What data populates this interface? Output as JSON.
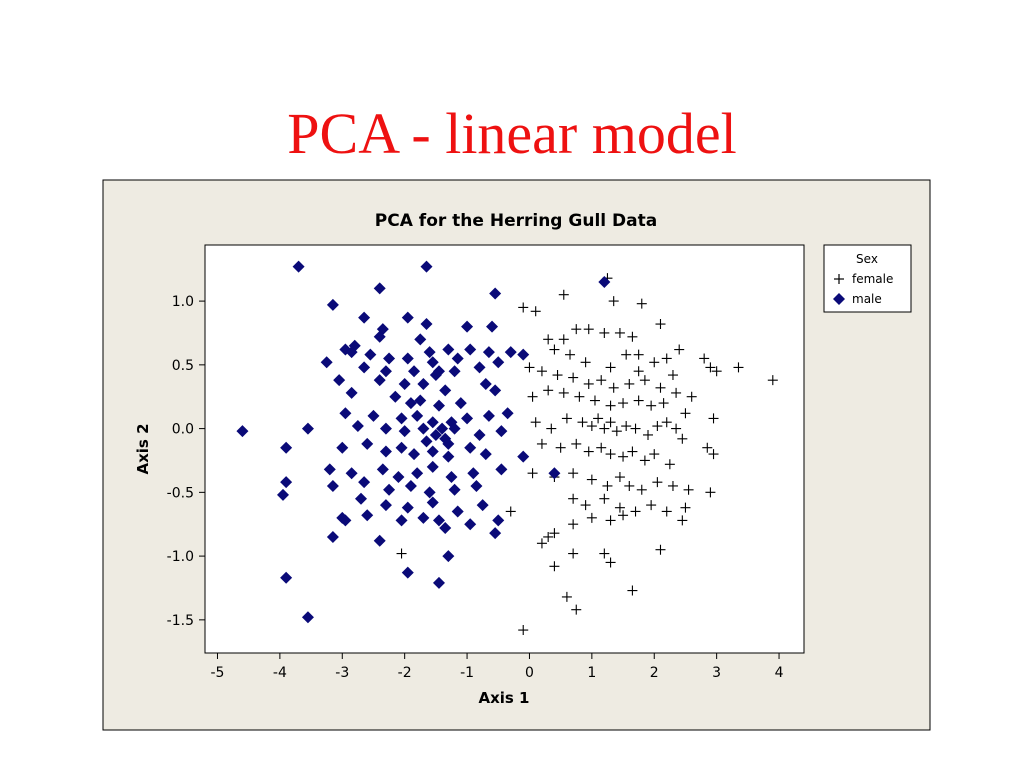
{
  "slide": {
    "title": "PCA - linear model"
  },
  "colors": {
    "title": "#ee1111",
    "male": "#0a0a78",
    "female": "#000000",
    "frame_bg": "#eeebe2"
  },
  "chart_data": {
    "type": "scatter",
    "title": "PCA for the Herring Gull Data",
    "xlabel": "Axis 1",
    "ylabel": "Axis 2",
    "xlim": [
      -5.2,
      4.4
    ],
    "ylim": [
      -1.76,
      1.44
    ],
    "xticks": [
      -5,
      -4,
      -3,
      -2,
      -1,
      0,
      1,
      2,
      3,
      4
    ],
    "xtick_labels": [
      "-5",
      "-4",
      "-3",
      "-2",
      "-1",
      "0",
      "1",
      "2",
      "3",
      "4"
    ],
    "yticks": [
      1.0,
      0.5,
      0.0,
      -0.5,
      -1.0,
      -1.5
    ],
    "ytick_labels": [
      "1.0",
      "0.5",
      "0.0",
      "-0.5",
      "-1.0",
      "-1.5"
    ],
    "grid": false,
    "legend": {
      "title": "Sex",
      "position": "right"
    },
    "series": [
      {
        "name": "female",
        "marker": "plus",
        "color": "#000000",
        "points": [
          [
            -0.1,
            0.95
          ],
          [
            0.3,
            0.7
          ],
          [
            0.55,
            0.7
          ],
          [
            0.75,
            0.78
          ],
          [
            0.95,
            0.78
          ],
          [
            1.2,
            0.75
          ],
          [
            1.45,
            0.75
          ],
          [
            1.65,
            0.72
          ],
          [
            0.4,
            0.62
          ],
          [
            0.65,
            0.58
          ],
          [
            0.9,
            0.52
          ],
          [
            1.3,
            0.48
          ],
          [
            1.55,
            0.58
          ],
          [
            1.75,
            0.58
          ],
          [
            2.0,
            0.52
          ],
          [
            2.2,
            0.55
          ],
          [
            2.4,
            0.62
          ],
          [
            0.0,
            0.48
          ],
          [
            0.2,
            0.45
          ],
          [
            0.45,
            0.42
          ],
          [
            0.7,
            0.4
          ],
          [
            0.95,
            0.35
          ],
          [
            1.15,
            0.38
          ],
          [
            1.35,
            0.32
          ],
          [
            1.6,
            0.35
          ],
          [
            1.85,
            0.38
          ],
          [
            2.1,
            0.32
          ],
          [
            2.35,
            0.28
          ],
          [
            2.6,
            0.25
          ],
          [
            2.8,
            0.55
          ],
          [
            2.9,
            0.48
          ],
          [
            3.0,
            0.45
          ],
          [
            3.35,
            0.48
          ],
          [
            3.9,
            0.38
          ],
          [
            0.55,
            0.28
          ],
          [
            0.8,
            0.25
          ],
          [
            1.05,
            0.22
          ],
          [
            1.3,
            0.18
          ],
          [
            1.5,
            0.2
          ],
          [
            1.75,
            0.22
          ],
          [
            1.95,
            0.18
          ],
          [
            2.15,
            0.2
          ],
          [
            2.5,
            0.12
          ],
          [
            2.95,
            0.08
          ],
          [
            0.1,
            0.05
          ],
          [
            0.35,
            0.0
          ],
          [
            0.6,
            0.08
          ],
          [
            0.85,
            0.05
          ],
          [
            1.0,
            0.02
          ],
          [
            1.1,
            0.08
          ],
          [
            1.2,
            0.0
          ],
          [
            1.3,
            0.05
          ],
          [
            1.4,
            -0.02
          ],
          [
            1.55,
            0.02
          ],
          [
            1.7,
            0.0
          ],
          [
            1.9,
            -0.05
          ],
          [
            2.05,
            0.02
          ],
          [
            2.2,
            0.05
          ],
          [
            2.35,
            0.0
          ],
          [
            2.45,
            -0.08
          ],
          [
            0.2,
            -0.12
          ],
          [
            0.5,
            -0.15
          ],
          [
            0.75,
            -0.12
          ],
          [
            0.95,
            -0.18
          ],
          [
            1.15,
            -0.15
          ],
          [
            1.3,
            -0.2
          ],
          [
            1.5,
            -0.22
          ],
          [
            1.65,
            -0.18
          ],
          [
            1.85,
            -0.25
          ],
          [
            2.0,
            -0.2
          ],
          [
            2.25,
            -0.28
          ],
          [
            2.85,
            -0.15
          ],
          [
            2.95,
            -0.2
          ],
          [
            0.05,
            -0.35
          ],
          [
            0.4,
            -0.38
          ],
          [
            0.7,
            -0.35
          ],
          [
            1.0,
            -0.4
          ],
          [
            1.25,
            -0.45
          ],
          [
            1.45,
            -0.38
          ],
          [
            1.6,
            -0.45
          ],
          [
            1.8,
            -0.48
          ],
          [
            2.05,
            -0.42
          ],
          [
            2.3,
            -0.45
          ],
          [
            2.55,
            -0.48
          ],
          [
            2.9,
            -0.5
          ],
          [
            0.7,
            -0.55
          ],
          [
            0.9,
            -0.6
          ],
          [
            1.2,
            -0.55
          ],
          [
            1.45,
            -0.62
          ],
          [
            1.7,
            -0.65
          ],
          [
            1.95,
            -0.6
          ],
          [
            2.2,
            -0.65
          ],
          [
            2.5,
            -0.62
          ],
          [
            2.45,
            -0.72
          ],
          [
            -1.15,
            -0.65
          ],
          [
            -0.3,
            -0.65
          ],
          [
            0.3,
            -0.85
          ],
          [
            0.4,
            -0.82
          ],
          [
            0.7,
            -0.75
          ],
          [
            1.0,
            -0.7
          ],
          [
            1.3,
            -0.72
          ],
          [
            1.5,
            -0.68
          ],
          [
            0.2,
            -0.9
          ],
          [
            0.7,
            -0.98
          ],
          [
            1.2,
            -0.98
          ],
          [
            1.3,
            -1.05
          ],
          [
            2.1,
            -0.95
          ],
          [
            0.4,
            -1.08
          ],
          [
            0.6,
            -1.32
          ],
          [
            0.75,
            -1.42
          ],
          [
            1.65,
            -1.27
          ],
          [
            -0.1,
            -1.58
          ],
          [
            -2.05,
            -0.98
          ],
          [
            1.25,
            1.18
          ],
          [
            1.35,
            1.0
          ],
          [
            1.8,
            0.98
          ],
          [
            2.1,
            0.82
          ],
          [
            0.55,
            1.05
          ],
          [
            0.1,
            0.92
          ],
          [
            2.3,
            0.42
          ],
          [
            1.75,
            0.45
          ],
          [
            0.3,
            0.3
          ],
          [
            0.05,
            0.25
          ]
        ]
      },
      {
        "name": "male",
        "marker": "diamond",
        "color": "#0a0a78",
        "points": [
          [
            -3.7,
            1.27
          ],
          [
            -1.65,
            1.27
          ],
          [
            -2.4,
            1.1
          ],
          [
            -0.55,
            1.06
          ],
          [
            1.2,
            1.15
          ],
          [
            -3.15,
            0.97
          ],
          [
            -2.65,
            0.87
          ],
          [
            -1.95,
            0.87
          ],
          [
            -2.35,
            0.78
          ],
          [
            -1.65,
            0.82
          ],
          [
            -1.0,
            0.8
          ],
          [
            -0.6,
            0.8
          ],
          [
            -2.4,
            0.72
          ],
          [
            -1.75,
            0.7
          ],
          [
            -1.3,
            0.62
          ],
          [
            -0.95,
            0.62
          ],
          [
            -2.95,
            0.62
          ],
          [
            -2.85,
            0.6
          ],
          [
            -2.55,
            0.58
          ],
          [
            -2.25,
            0.55
          ],
          [
            -1.95,
            0.55
          ],
          [
            -1.55,
            0.52
          ],
          [
            -1.15,
            0.55
          ],
          [
            -0.65,
            0.6
          ],
          [
            -0.3,
            0.6
          ],
          [
            -3.25,
            0.52
          ],
          [
            -2.65,
            0.48
          ],
          [
            -2.3,
            0.45
          ],
          [
            -1.85,
            0.45
          ],
          [
            -1.5,
            0.42
          ],
          [
            -1.2,
            0.45
          ],
          [
            -0.8,
            0.48
          ],
          [
            -0.5,
            0.52
          ],
          [
            -3.05,
            0.38
          ],
          [
            -2.4,
            0.38
          ],
          [
            -2.0,
            0.35
          ],
          [
            -1.7,
            0.35
          ],
          [
            -1.35,
            0.3
          ],
          [
            -0.7,
            0.35
          ],
          [
            -2.85,
            0.28
          ],
          [
            -2.15,
            0.25
          ],
          [
            -1.75,
            0.22
          ],
          [
            -1.45,
            0.18
          ],
          [
            -1.1,
            0.2
          ],
          [
            -0.55,
            0.3
          ],
          [
            -2.95,
            0.12
          ],
          [
            -2.5,
            0.1
          ],
          [
            -2.05,
            0.08
          ],
          [
            -1.8,
            0.1
          ],
          [
            -1.55,
            0.05
          ],
          [
            -1.4,
            0.0
          ],
          [
            -1.25,
            0.05
          ],
          [
            -1.0,
            0.08
          ],
          [
            -0.65,
            0.1
          ],
          [
            -0.35,
            0.12
          ],
          [
            -3.55,
            0.0
          ],
          [
            -2.75,
            0.02
          ],
          [
            -2.3,
            0.0
          ],
          [
            -2.0,
            -0.02
          ],
          [
            -1.7,
            0.0
          ],
          [
            -1.5,
            -0.05
          ],
          [
            -1.35,
            -0.08
          ],
          [
            -1.2,
            0.0
          ],
          [
            -0.8,
            -0.05
          ],
          [
            -0.45,
            -0.02
          ],
          [
            -4.6,
            -0.02
          ],
          [
            -3.9,
            -0.15
          ],
          [
            -3.0,
            -0.15
          ],
          [
            -2.6,
            -0.12
          ],
          [
            -2.3,
            -0.18
          ],
          [
            -2.05,
            -0.15
          ],
          [
            -1.85,
            -0.2
          ],
          [
            -1.55,
            -0.18
          ],
          [
            -1.3,
            -0.22
          ],
          [
            -0.95,
            -0.15
          ],
          [
            -0.7,
            -0.2
          ],
          [
            -0.1,
            -0.22
          ],
          [
            -3.2,
            -0.32
          ],
          [
            -2.85,
            -0.35
          ],
          [
            -2.35,
            -0.32
          ],
          [
            -2.1,
            -0.38
          ],
          [
            -1.8,
            -0.35
          ],
          [
            -1.55,
            -0.3
          ],
          [
            -1.25,
            -0.38
          ],
          [
            -0.9,
            -0.35
          ],
          [
            -0.45,
            -0.32
          ],
          [
            -3.15,
            -0.45
          ],
          [
            -2.65,
            -0.42
          ],
          [
            -2.25,
            -0.48
          ],
          [
            -1.9,
            -0.45
          ],
          [
            -1.6,
            -0.5
          ],
          [
            -1.2,
            -0.48
          ],
          [
            -0.85,
            -0.45
          ],
          [
            -3.9,
            -0.42
          ],
          [
            -3.95,
            -0.52
          ],
          [
            -2.7,
            -0.55
          ],
          [
            -2.3,
            -0.6
          ],
          [
            -1.95,
            -0.62
          ],
          [
            -1.55,
            -0.58
          ],
          [
            -1.15,
            -0.65
          ],
          [
            -0.75,
            -0.6
          ],
          [
            -2.95,
            -0.72
          ],
          [
            -2.6,
            -0.68
          ],
          [
            -2.05,
            -0.72
          ],
          [
            -1.7,
            -0.7
          ],
          [
            -1.45,
            -0.72
          ],
          [
            -0.95,
            -0.75
          ],
          [
            -0.5,
            -0.72
          ],
          [
            -3.0,
            -0.7
          ],
          [
            -3.15,
            -0.85
          ],
          [
            -2.4,
            -0.88
          ],
          [
            -1.35,
            -0.78
          ],
          [
            -0.55,
            -0.82
          ],
          [
            -1.95,
            -1.13
          ],
          [
            -1.3,
            -1.0
          ],
          [
            -1.45,
            -1.21
          ],
          [
            -3.9,
            -1.17
          ],
          [
            -3.55,
            -1.48
          ],
          [
            0.4,
            -0.35
          ],
          [
            -1.6,
            0.6
          ],
          [
            -1.45,
            0.45
          ],
          [
            -1.3,
            -0.12
          ],
          [
            -1.65,
            -0.1
          ],
          [
            -1.9,
            0.2
          ],
          [
            -2.8,
            0.65
          ],
          [
            -0.1,
            0.58
          ]
        ]
      }
    ]
  }
}
